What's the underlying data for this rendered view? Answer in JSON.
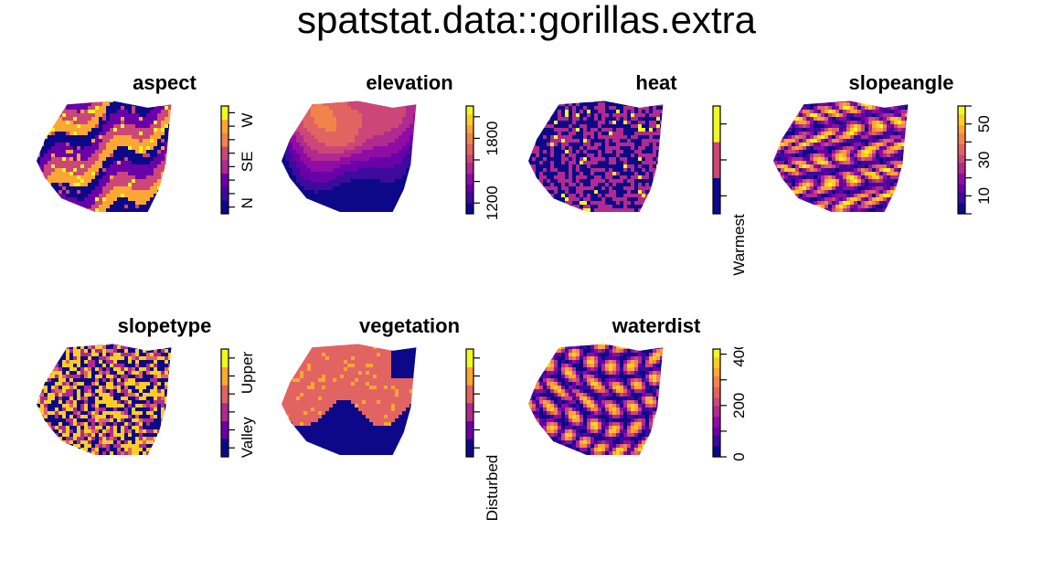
{
  "title": "spatstat.data::gorillas.extra",
  "colors": {
    "palette": [
      "#0d0887",
      "#3c0a9c",
      "#6a00a8",
      "#8f0da4",
      "#b12a90",
      "#cc4778",
      "#e16462",
      "#f2844b",
      "#fca636",
      "#fcce25",
      "#f0f921"
    ],
    "background": "#ffffff"
  },
  "chart_data": [
    {
      "type": "heatmap",
      "name": "aspect",
      "title": "aspect",
      "legend": {
        "kind": "factor",
        "levels": 8,
        "tick_labels": [
          "N",
          "SE",
          "W"
        ],
        "rotated_labels": false
      }
    },
    {
      "type": "heatmap",
      "name": "elevation",
      "title": "elevation",
      "legend": {
        "kind": "continuous",
        "range": [
          1100,
          2100
        ],
        "tick_labels": [
          "1200",
          "1800"
        ],
        "tick_values": [
          1200,
          1800
        ],
        "rotated_labels": false
      }
    },
    {
      "type": "heatmap",
      "name": "heat",
      "title": "heat",
      "legend": {
        "kind": "factor",
        "levels": 3,
        "tick_labels": [
          "Warmest"
        ],
        "rotated_labels": true
      }
    },
    {
      "type": "heatmap",
      "name": "slopeangle",
      "title": "slopeangle",
      "legend": {
        "kind": "continuous",
        "range": [
          0,
          60
        ],
        "tick_labels": [
          "10",
          "30",
          "50"
        ],
        "tick_values": [
          10,
          30,
          50
        ],
        "rotated_labels": false
      }
    },
    {
      "type": "heatmap",
      "name": "slopetype",
      "title": "slopetype",
      "legend": {
        "kind": "factor",
        "levels": 6,
        "tick_labels": [
          "Valley",
          "Upper"
        ],
        "rotated_labels": true
      }
    },
    {
      "type": "heatmap",
      "name": "vegetation",
      "title": "vegetation",
      "legend": {
        "kind": "factor",
        "levels": 6,
        "tick_labels": [
          "Disturbed"
        ],
        "rotated_labels": true
      }
    },
    {
      "type": "heatmap",
      "name": "waterdist",
      "title": "waterdist",
      "legend": {
        "kind": "continuous",
        "range": [
          0,
          420
        ],
        "tick_labels": [
          "0",
          "200",
          "400"
        ],
        "tick_values": [
          0,
          200,
          400
        ],
        "rotated_labels": false
      }
    }
  ]
}
